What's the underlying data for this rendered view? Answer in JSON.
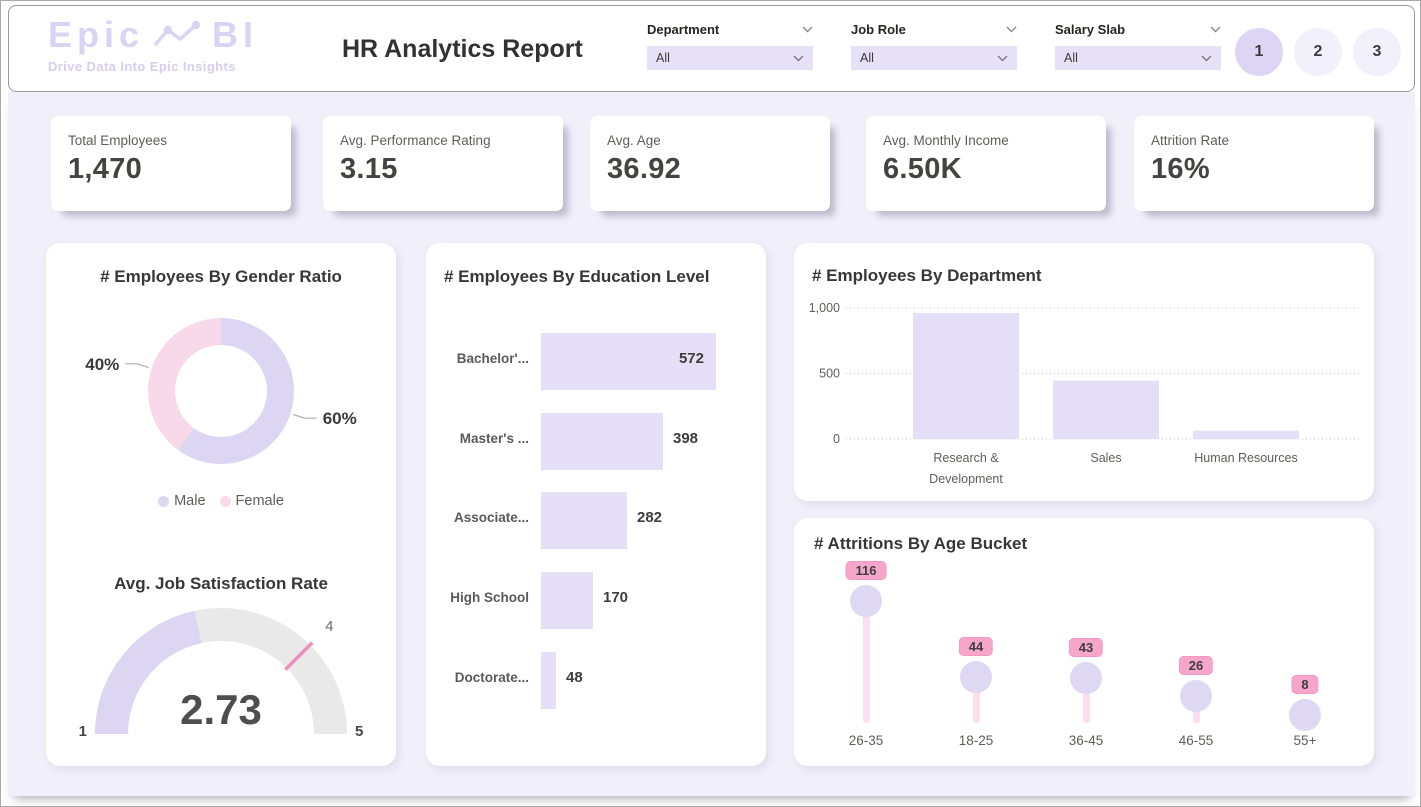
{
  "header": {
    "logo": {
      "part1": "Epic",
      "part2": "BI",
      "tagline": "Drive Data Into Epic Insights"
    },
    "title": "HR Analytics Report",
    "filters": [
      {
        "label": "Department",
        "value": "All"
      },
      {
        "label": "Job Role",
        "value": "All"
      },
      {
        "label": "Salary Slab",
        "value": "All"
      }
    ],
    "pages": [
      {
        "label": "1",
        "active": true
      },
      {
        "label": "2",
        "active": false
      },
      {
        "label": "3",
        "active": false
      }
    ]
  },
  "kpis": [
    {
      "label": "Total Employees",
      "value": "1,470"
    },
    {
      "label": "Avg. Performance Rating",
      "value": "3.15"
    },
    {
      "label": "Avg. Age",
      "value": "36.92"
    },
    {
      "label": "Avg. Monthly Income",
      "value": "6.50K"
    },
    {
      "label": "Attrition Rate",
      "value": "16%"
    }
  ],
  "colors": {
    "background": "#f1eff9",
    "accent_lavender": "#ddd6f2",
    "light_lavender": "#e5dff7",
    "pink": "#f8d9e9",
    "badge_pink": "#f6a6cb",
    "stem_pink": "#fbdfee",
    "dot_lavender": "#ded8f3",
    "target_pink": "#ee8fc0",
    "gauge_track": "#e9e9e9",
    "text_dark": "#373737",
    "text_gray": "#5f5d5b",
    "grid_gray": "#c9c9c9"
  },
  "chart_data": [
    {
      "type": "pie",
      "title": "# Employees By Gender Ratio",
      "labels": [
        "Male",
        "Female"
      ],
      "values": [
        60,
        40
      ],
      "data_labels": [
        "60%",
        "40%"
      ],
      "colors": [
        "#ddd6f2",
        "#f8d9e9"
      ],
      "legend_position": "bottom"
    },
    {
      "type": "gauge",
      "title": "Avg. Job Satisfaction Rate",
      "min": 1,
      "max": 5,
      "value": 2.73,
      "value_label": "2.73",
      "target": 4,
      "target_label": "4",
      "min_label": "1",
      "max_label": "5"
    },
    {
      "type": "bar",
      "orientation": "horizontal",
      "title": "# Employees By Education Level",
      "categories": [
        "Bachelor'...",
        "Master's ...",
        "Associate...",
        "High School",
        "Doctorate..."
      ],
      "values": [
        572,
        398,
        282,
        170,
        48
      ]
    },
    {
      "type": "bar",
      "orientation": "vertical",
      "title": "# Employees By Department",
      "categories": [
        "Research & Development",
        "Sales",
        "Human Resources"
      ],
      "values": [
        961,
        446,
        63
      ],
      "ylim": [
        0,
        1000
      ],
      "yticks": [
        0,
        500,
        1000
      ],
      "ytick_labels": [
        "0",
        "500",
        "1,000"
      ],
      "grid": "dotted"
    },
    {
      "type": "lollipop",
      "title": "# Attritions By Age Bucket",
      "categories": [
        "26-35",
        "18-25",
        "36-45",
        "46-55",
        "55+"
      ],
      "values": [
        116,
        44,
        43,
        26,
        8
      ]
    }
  ]
}
